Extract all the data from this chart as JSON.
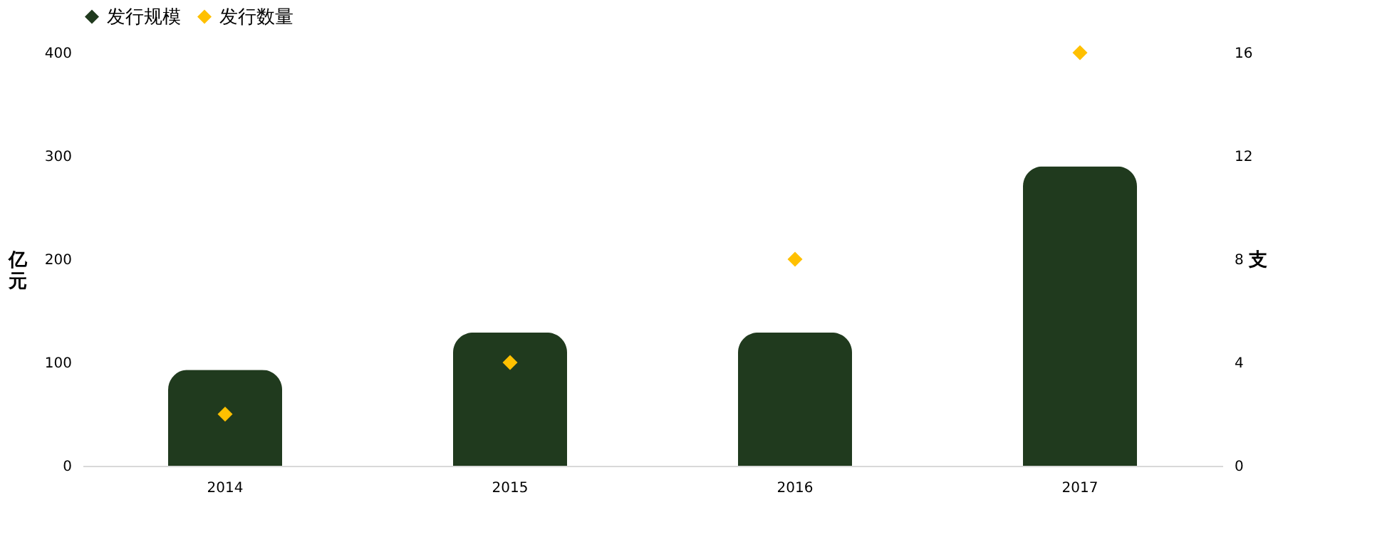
{
  "chart_data": {
    "type": "bar",
    "categories": [
      "2014",
      "2015",
      "2016",
      "2017"
    ],
    "ylabel": "亿元",
    "y2label": "支",
    "series": [
      {
        "name": "发行规模",
        "type": "bar",
        "color": "#203a1e",
        "values": [
          93,
          129,
          129,
          290
        ]
      },
      {
        "name": "发行数量",
        "type": "scatter",
        "axis": "y2",
        "color": "#ffc000",
        "values": [
          2,
          4,
          8,
          16
        ]
      }
    ],
    "ylim": [
      0,
      400
    ],
    "yticks": [
      0,
      100,
      200,
      300,
      400
    ],
    "y2lim": [
      0,
      16
    ],
    "y2ticks": [
      0,
      4,
      8,
      12,
      16
    ],
    "marker": "diamond",
    "legend": "top",
    "grid": false
  }
}
